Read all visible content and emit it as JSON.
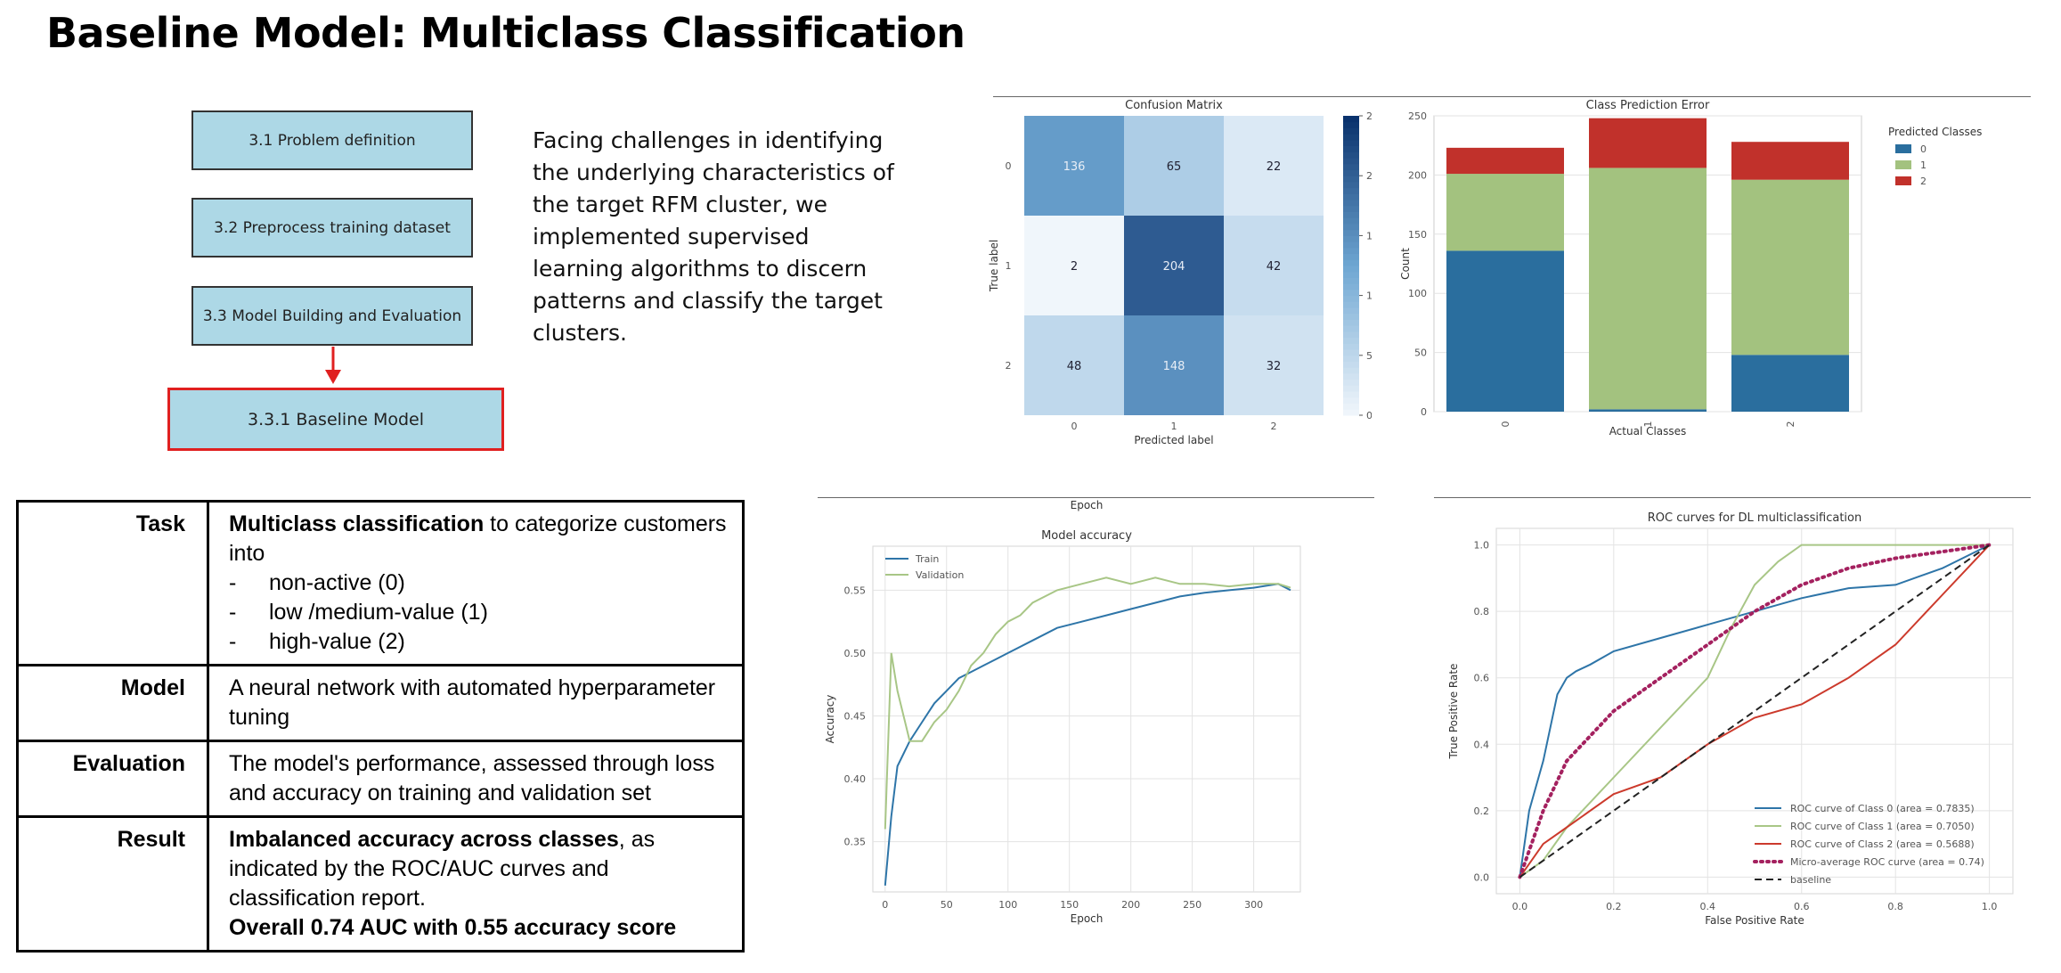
{
  "title": "Baseline Model: Multiclass Classification",
  "steps": [
    {
      "label": "3.1 Problem definition"
    },
    {
      "label": "3.2 Preprocess training dataset"
    },
    {
      "label": "3.3 Model Building and Evaluation"
    },
    {
      "label": "3.3.1 Baseline Model"
    }
  ],
  "description": "Facing challenges in identifying the underlying characteristics of the target RFM cluster, we implemented supervised learning algorithms to discern patterns and classify the target clusters.",
  "table": {
    "task_key": "Task",
    "task_bold": "Multiclass classification",
    "task_rest": " to categorize customers into",
    "task_items": [
      "non-active (0)",
      "low /medium-value (1)",
      "high-value (2)"
    ],
    "model_key": "Model",
    "model_val": "A neural network with automated hyperparameter tuning",
    "eval_key": "Evaluation",
    "eval_val": "The model's performance, assessed through loss and accuracy on training and validation set",
    "result_key": "Result",
    "result_bold": "Imbalanced accuracy across classes",
    "result_rest": ", as indicated by the ROC/AUC curves and classification report.",
    "result_final": "Overall 0.74 AUC with 0.55 accuracy score"
  },
  "chart_data": [
    {
      "type": "heatmap",
      "title": "Confusion Matrix",
      "xlabel": "Predicted label",
      "ylabel": "True label",
      "labels": [
        "0",
        "1",
        "2"
      ],
      "matrix": [
        [
          136,
          65,
          22
        ],
        [
          2,
          204,
          42
        ],
        [
          48,
          148,
          32
        ]
      ],
      "colorbar_ticks": [
        0,
        50,
        100,
        150,
        200,
        250
      ],
      "colorbar_range": [
        0,
        250
      ]
    },
    {
      "type": "bar",
      "title": "Class Prediction Error",
      "xlabel": "Actual Classes",
      "ylabel": "Count",
      "categories": [
        "0",
        "1",
        "2"
      ],
      "stacked": true,
      "legend_title": "Predicted Classes",
      "legend_position": "top-right",
      "series": [
        {
          "name": "0",
          "values": [
            136,
            2,
            48
          ],
          "color": "#2a6e9e"
        },
        {
          "name": "1",
          "values": [
            65,
            204,
            148
          ],
          "color": "#a3c27f"
        },
        {
          "name": "2",
          "values": [
            22,
            42,
            32
          ],
          "color": "#c1312b"
        }
      ],
      "ylim": [
        0,
        250
      ],
      "yticks": [
        0,
        50,
        100,
        150,
        200,
        250
      ]
    },
    {
      "type": "line",
      "top_label": "Epoch",
      "title": "Model accuracy",
      "xlabel": "Epoch",
      "ylabel": "Accuracy",
      "xlim": [
        -10,
        338
      ],
      "ylim": [
        0.31,
        0.585
      ],
      "xticks": [
        0,
        50,
        100,
        150,
        200,
        250,
        300
      ],
      "yticks": [
        0.35,
        0.4,
        0.45,
        0.5,
        0.55
      ],
      "legend_position": "top-left",
      "series": [
        {
          "name": "Train",
          "color": "#2e75a8",
          "x": [
            0,
            5,
            10,
            20,
            30,
            40,
            50,
            60,
            70,
            80,
            90,
            100,
            120,
            140,
            160,
            180,
            200,
            220,
            240,
            260,
            280,
            300,
            320,
            330
          ],
          "y": [
            0.315,
            0.37,
            0.41,
            0.43,
            0.445,
            0.46,
            0.47,
            0.48,
            0.485,
            0.49,
            0.495,
            0.5,
            0.51,
            0.52,
            0.525,
            0.53,
            0.535,
            0.54,
            0.545,
            0.548,
            0.55,
            0.552,
            0.555,
            0.55
          ]
        },
        {
          "name": "Validation",
          "color": "#a8c686",
          "x": [
            0,
            5,
            10,
            15,
            20,
            30,
            40,
            50,
            60,
            70,
            80,
            90,
            100,
            110,
            120,
            140,
            160,
            180,
            200,
            220,
            240,
            260,
            280,
            300,
            320,
            330
          ],
          "y": [
            0.36,
            0.5,
            0.47,
            0.45,
            0.43,
            0.43,
            0.445,
            0.455,
            0.47,
            0.49,
            0.5,
            0.515,
            0.525,
            0.53,
            0.54,
            0.55,
            0.555,
            0.56,
            0.555,
            0.56,
            0.555,
            0.555,
            0.553,
            0.555,
            0.555,
            0.552
          ]
        }
      ]
    },
    {
      "type": "line",
      "title": "ROC curves for DL multiclassification",
      "xlabel": "False Positive Rate",
      "ylabel": "True Positive Rate",
      "xlim": [
        -0.05,
        1.05
      ],
      "ylim": [
        -0.05,
        1.05
      ],
      "xticks": [
        0.0,
        0.2,
        0.4,
        0.6,
        0.8,
        1.0
      ],
      "yticks": [
        0.0,
        0.2,
        0.4,
        0.6,
        0.8,
        1.0
      ],
      "legend_position": "bottom-right",
      "series": [
        {
          "name": "ROC curve of Class 0 (area = 0.7835)",
          "color": "#2e75a8",
          "dash": "",
          "x": [
            0,
            0.02,
            0.05,
            0.08,
            0.1,
            0.12,
            0.15,
            0.2,
            0.3,
            0.4,
            0.5,
            0.6,
            0.7,
            0.8,
            0.9,
            1.0
          ],
          "y": [
            0,
            0.2,
            0.35,
            0.55,
            0.6,
            0.62,
            0.64,
            0.68,
            0.72,
            0.76,
            0.8,
            0.84,
            0.87,
            0.88,
            0.93,
            1.0
          ]
        },
        {
          "name": "ROC curve of Class 1 (area = 0.7050)",
          "color": "#a8c686",
          "dash": "",
          "x": [
            0,
            0.05,
            0.1,
            0.2,
            0.3,
            0.4,
            0.45,
            0.5,
            0.55,
            0.6,
            0.7,
            0.8,
            0.9,
            1.0
          ],
          "y": [
            0,
            0.05,
            0.15,
            0.3,
            0.45,
            0.6,
            0.75,
            0.88,
            0.95,
            1.0,
            1.0,
            1.0,
            1.0,
            1.0
          ]
        },
        {
          "name": "ROC curve of Class 2 (area = 0.5688)",
          "color": "#cc3a2c",
          "dash": "",
          "x": [
            0,
            0.05,
            0.1,
            0.2,
            0.3,
            0.4,
            0.5,
            0.6,
            0.7,
            0.8,
            0.9,
            1.0
          ],
          "y": [
            0,
            0.1,
            0.15,
            0.25,
            0.3,
            0.4,
            0.48,
            0.52,
            0.6,
            0.7,
            0.85,
            1.0
          ]
        },
        {
          "name": "Micro-average ROC curve (area = 0.74)",
          "color": "#a4215f",
          "dash": "2,5",
          "x": [
            0,
            0.05,
            0.1,
            0.2,
            0.3,
            0.4,
            0.5,
            0.6,
            0.7,
            0.8,
            0.9,
            1.0
          ],
          "y": [
            0,
            0.2,
            0.35,
            0.5,
            0.6,
            0.7,
            0.8,
            0.88,
            0.93,
            0.96,
            0.98,
            1.0
          ]
        },
        {
          "name": "baseline",
          "color": "#222222",
          "dash": "8,5",
          "x": [
            0,
            1.0
          ],
          "y": [
            0,
            1.0
          ]
        }
      ]
    }
  ]
}
